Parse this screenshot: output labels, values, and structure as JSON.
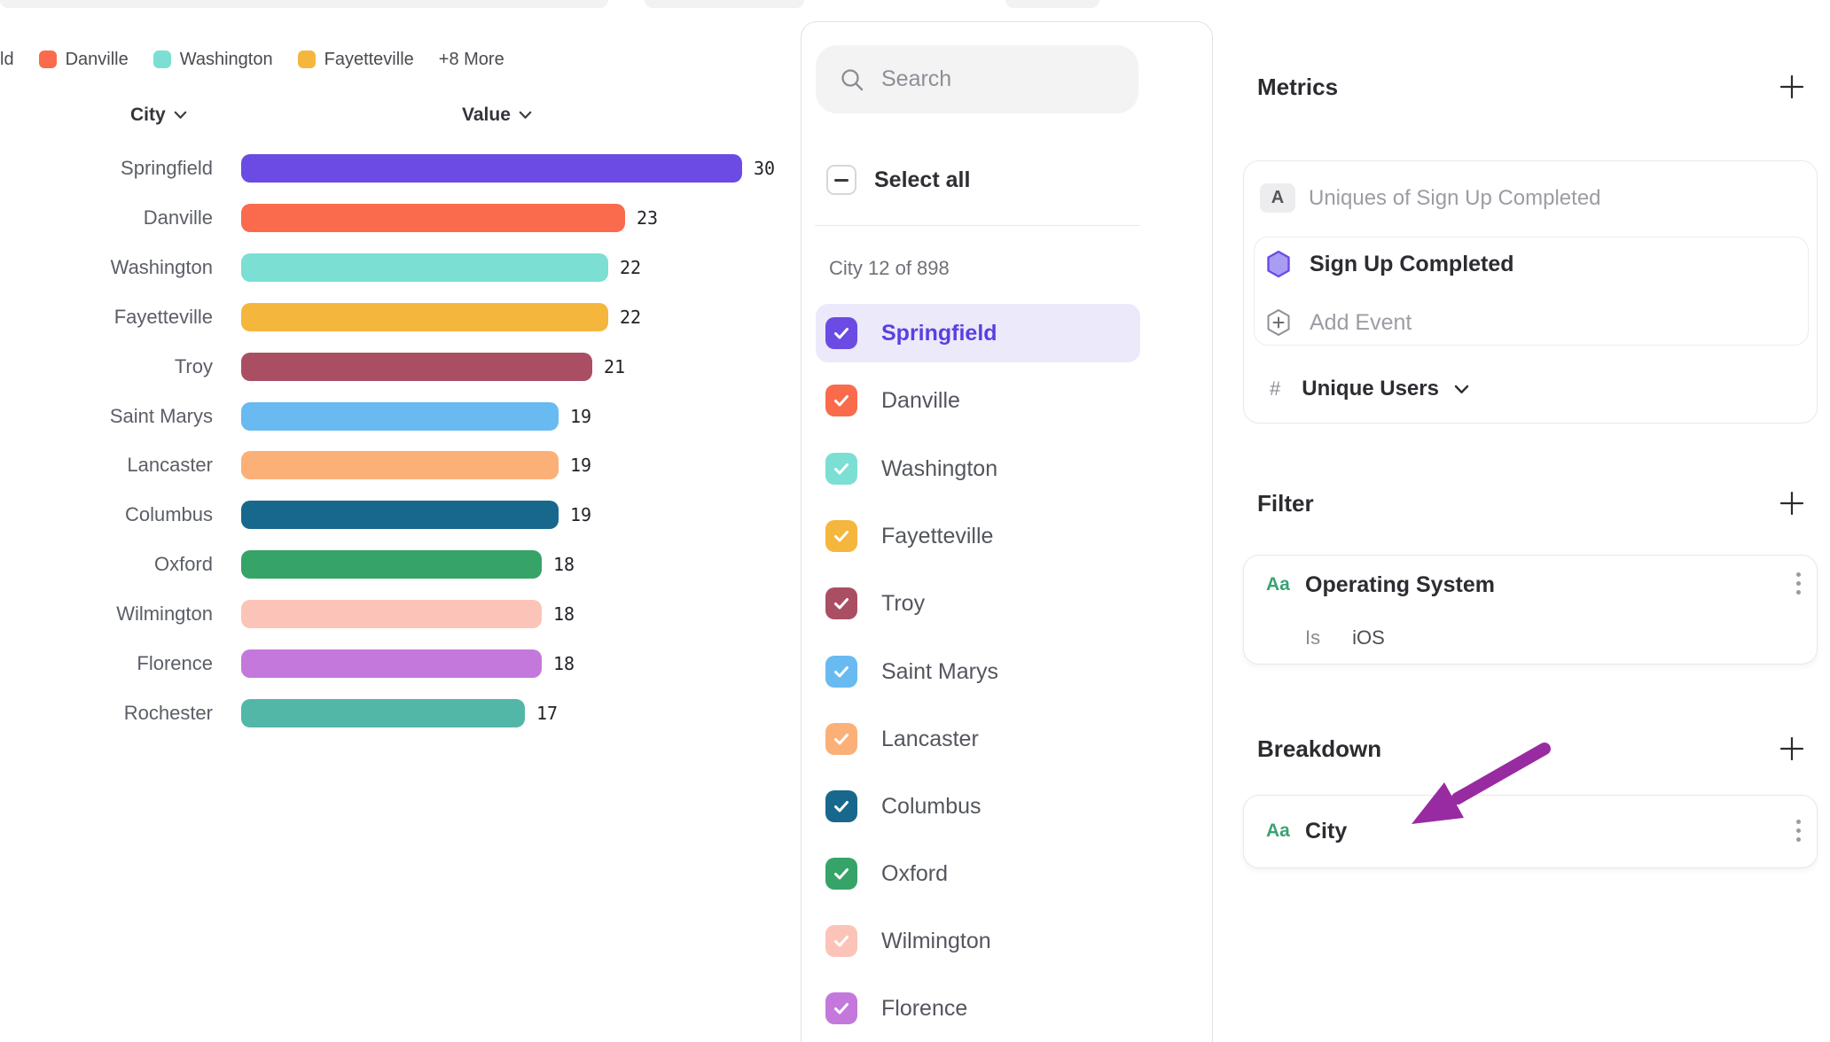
{
  "legend": {
    "items": [
      {
        "label": "ld",
        "color": ""
      },
      {
        "label": "Danville",
        "color": "#f96b4c"
      },
      {
        "label": "Washington",
        "color": "#7bdfd3"
      },
      {
        "label": "Fayetteville",
        "color": "#f5b63d"
      },
      {
        "label": "+8 More",
        "color": ""
      }
    ]
  },
  "chart_data": {
    "type": "bar",
    "orientation": "horizontal",
    "column_headers": {
      "category": "City",
      "value": "Value"
    },
    "categories": [
      "Springfield",
      "Danville",
      "Washington",
      "Fayetteville",
      "Troy",
      "Saint Marys",
      "Lancaster",
      "Columbus",
      "Oxford",
      "Wilmington",
      "Florence",
      "Rochester"
    ],
    "values": [
      30,
      23,
      22,
      22,
      21,
      19,
      19,
      19,
      18,
      18,
      18,
      17
    ],
    "colors": [
      "#6b4be3",
      "#f96b4c",
      "#7bdfd3",
      "#f5b63d",
      "#aa4f63",
      "#68baf0",
      "#fbb078",
      "#17688c",
      "#36a368",
      "#fcc4b8",
      "#c478db",
      "#52b7a7"
    ],
    "xlim": [
      0,
      30
    ],
    "value_labels_shown": true,
    "legend_position": "top"
  },
  "city_panel": {
    "search_placeholder": "Search",
    "select_all_label": "Select all",
    "count_label": "City 12 of 898",
    "items": [
      {
        "label": "Springfield",
        "color": "#6b4be3",
        "checked": true,
        "selected": true
      },
      {
        "label": "Danville",
        "color": "#f96b4c",
        "checked": true,
        "selected": false
      },
      {
        "label": "Washington",
        "color": "#7bdfd3",
        "checked": true,
        "selected": false
      },
      {
        "label": "Fayetteville",
        "color": "#f5b63d",
        "checked": true,
        "selected": false
      },
      {
        "label": "Troy",
        "color": "#aa4f63",
        "checked": true,
        "selected": false
      },
      {
        "label": "Saint Marys",
        "color": "#68baf0",
        "checked": true,
        "selected": false
      },
      {
        "label": "Lancaster",
        "color": "#fbb078",
        "checked": true,
        "selected": false
      },
      {
        "label": "Columbus",
        "color": "#17688c",
        "checked": true,
        "selected": false
      },
      {
        "label": "Oxford",
        "color": "#36a368",
        "checked": true,
        "selected": false
      },
      {
        "label": "Wilmington",
        "color": "#fcc4b8",
        "checked": true,
        "selected": false
      },
      {
        "label": "Florence",
        "color": "#c478db",
        "checked": true,
        "selected": false
      }
    ]
  },
  "inspector": {
    "metrics": {
      "title": "Metrics",
      "row_badge": "A",
      "row_label": "Uniques of Sign Up Completed",
      "event_name": "Sign Up Completed",
      "add_event_label": "Add Event",
      "hash": "#",
      "aggregation_label": "Unique Users"
    },
    "filter": {
      "title": "Filter",
      "type_badge": "Aa",
      "property": "Operating System",
      "operator": "Is",
      "value": "iOS"
    },
    "breakdown": {
      "title": "Breakdown",
      "type_badge": "Aa",
      "property": "City"
    }
  },
  "annotation": {
    "arrow_color": "#982ba1"
  }
}
